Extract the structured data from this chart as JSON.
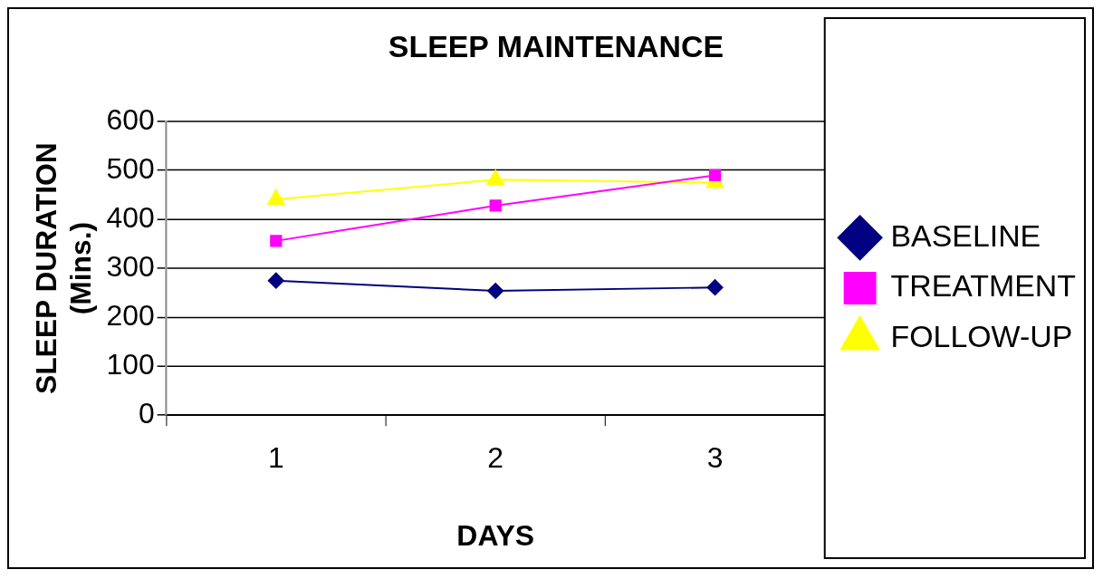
{
  "chart_data": {
    "type": "line",
    "title": "SLEEP MAINTENANCE",
    "xlabel": "DAYS",
    "ylabel": "SLEEP DURATION\n(Mins.)",
    "categories": [
      "1",
      "2",
      "3"
    ],
    "series": [
      {
        "name": "BASELINE",
        "color": "#000080",
        "marker": "diamond",
        "values": [
          275,
          254,
          261
        ]
      },
      {
        "name": "TREATMENT",
        "color": "#ff00ff",
        "marker": "square",
        "values": [
          356,
          428,
          490
        ]
      },
      {
        "name": "FOLLOW-UP",
        "color": "#ffff00",
        "marker": "triangle",
        "values": [
          441,
          481,
          475
        ]
      }
    ],
    "ylim": [
      0,
      600
    ],
    "yticks": [
      0,
      100,
      200,
      300,
      400,
      500,
      600
    ],
    "grid": "y",
    "legend": "right"
  }
}
